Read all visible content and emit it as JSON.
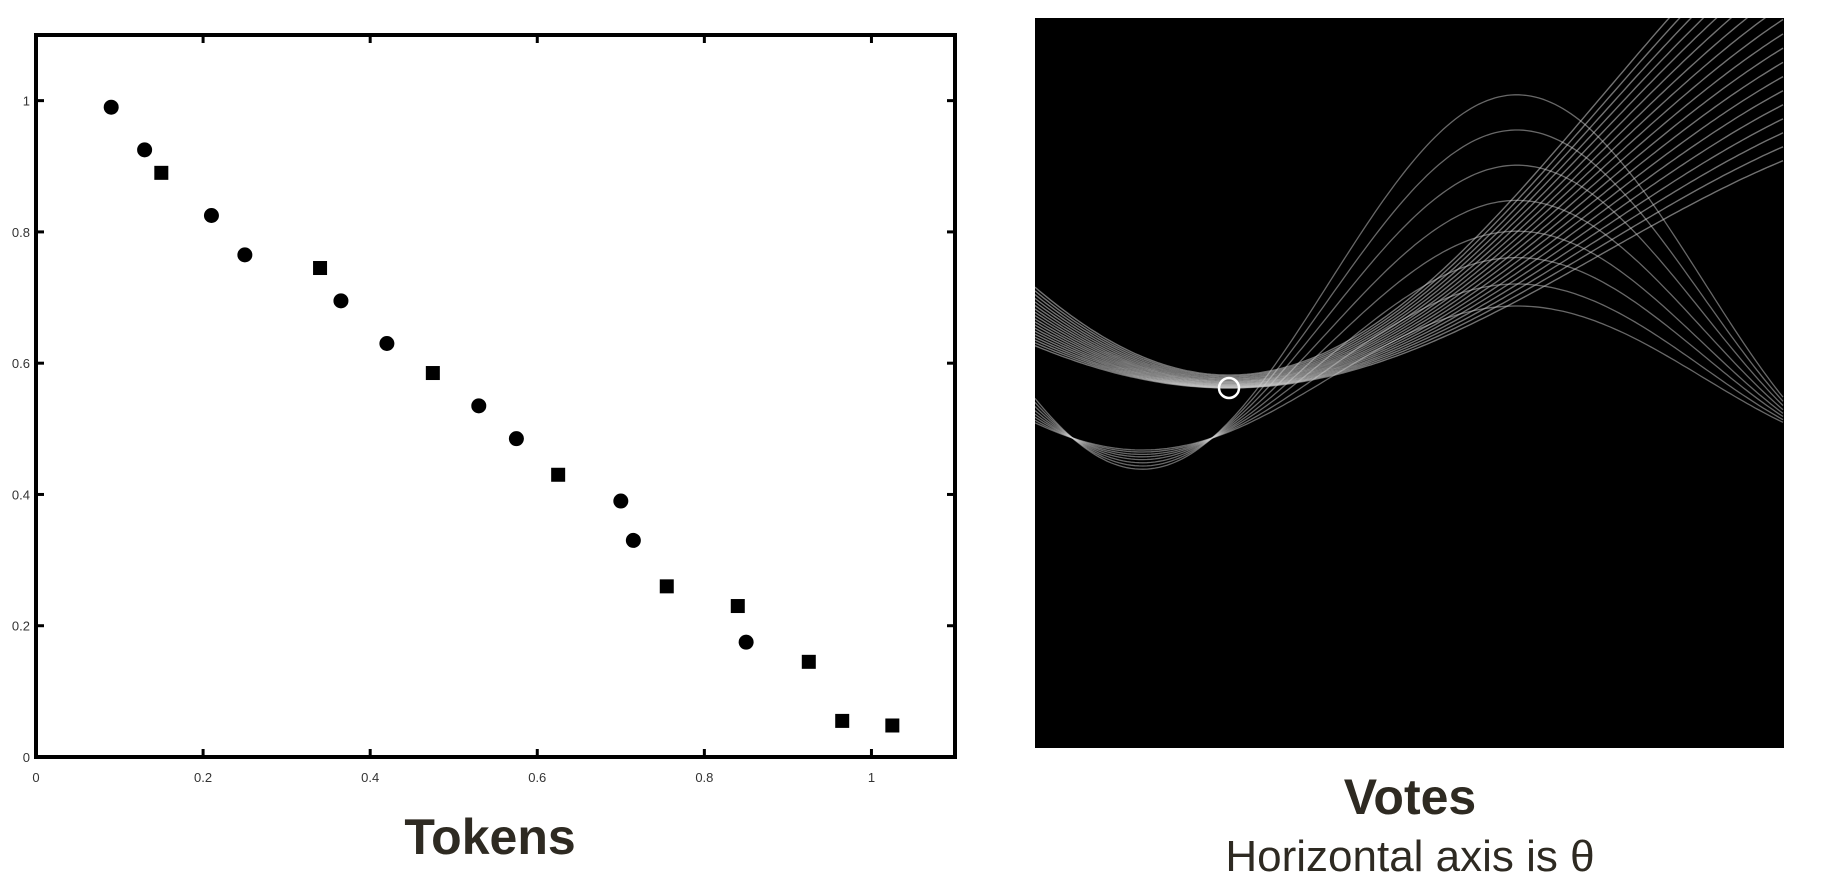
{
  "chart_data": [
    {
      "type": "scatter",
      "title": "Tokens",
      "xlim": [
        0,
        1.1
      ],
      "ylim": [
        0,
        1.1
      ],
      "x_ticks": [
        "0",
        "0.2",
        "0.4",
        "0.6",
        "0.8",
        "1"
      ],
      "y_ticks": [
        "0",
        "0.2",
        "0.4",
        "0.6",
        "0.8",
        "1"
      ],
      "grid": false,
      "points": [
        {
          "x": 0.09,
          "y": 0.99
        },
        {
          "x": 0.13,
          "y": 0.925
        },
        {
          "x": 0.15,
          "y": 0.89
        },
        {
          "x": 0.21,
          "y": 0.825
        },
        {
          "x": 0.25,
          "y": 0.765
        },
        {
          "x": 0.34,
          "y": 0.745
        },
        {
          "x": 0.365,
          "y": 0.695
        },
        {
          "x": 0.42,
          "y": 0.63
        },
        {
          "x": 0.475,
          "y": 0.585
        },
        {
          "x": 0.53,
          "y": 0.535
        },
        {
          "x": 0.575,
          "y": 0.485
        },
        {
          "x": 0.625,
          "y": 0.43
        },
        {
          "x": 0.7,
          "y": 0.39
        },
        {
          "x": 0.715,
          "y": 0.33
        },
        {
          "x": 0.755,
          "y": 0.26
        },
        {
          "x": 0.84,
          "y": 0.23
        },
        {
          "x": 0.85,
          "y": 0.175
        },
        {
          "x": 0.925,
          "y": 0.145
        },
        {
          "x": 0.965,
          "y": 0.055
        },
        {
          "x": 1.025,
          "y": 0.048
        }
      ]
    },
    {
      "type": "heatmap",
      "title": "Votes",
      "subtitle": "Horizontal axis is θ",
      "background": "#000000",
      "curve_color": "#cfcfcf",
      "peak_color": "#ffffff"
    }
  ]
}
